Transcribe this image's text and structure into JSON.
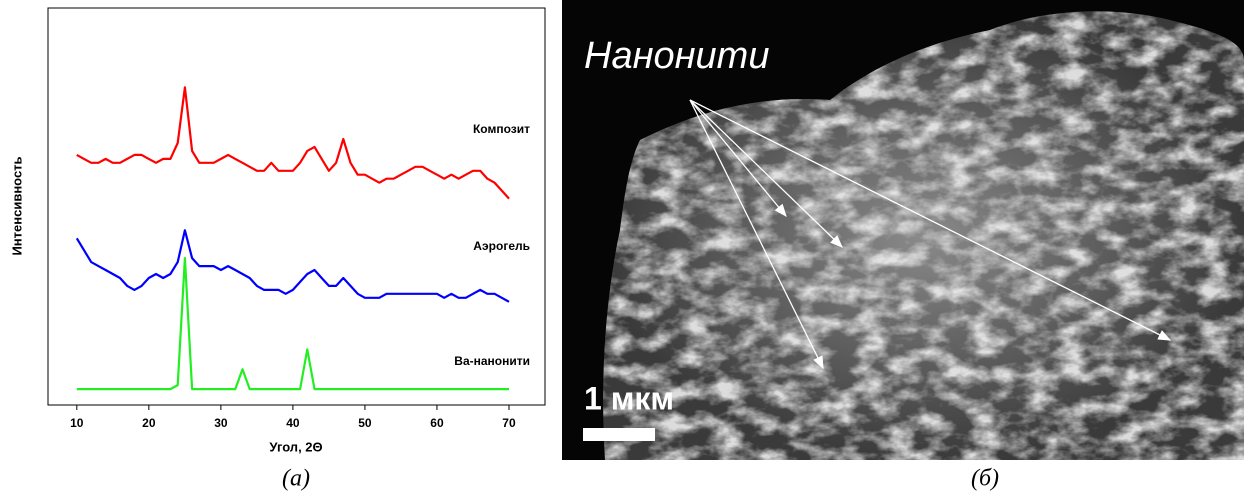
{
  "chart_data": {
    "type": "line",
    "x_label": "Угол, 2Θ",
    "y_label": "Интенсивность",
    "caption": "(a)",
    "xlim": [
      6,
      75
    ],
    "xticks": [
      10,
      20,
      30,
      40,
      50,
      60,
      70
    ],
    "ylim": [
      0,
      100
    ],
    "x": [
      10,
      11,
      12,
      13,
      14,
      15,
      16,
      17,
      18,
      19,
      20,
      21,
      22,
      23,
      24,
      25,
      26,
      27,
      28,
      29,
      30,
      31,
      32,
      33,
      34,
      35,
      36,
      37,
      38,
      39,
      40,
      41,
      42,
      43,
      44,
      45,
      46,
      47,
      48,
      49,
      50,
      51,
      52,
      53,
      54,
      55,
      56,
      57,
      58,
      59,
      60,
      61,
      62,
      63,
      64,
      65,
      66,
      67,
      68,
      69,
      70
    ],
    "series": [
      {
        "name": "Композит",
        "color": "#ff0000",
        "values": [
          63,
          62,
          61,
          61,
          62,
          61,
          61,
          62,
          63,
          63,
          62,
          61,
          62,
          62,
          66,
          80,
          64,
          61,
          61,
          61,
          62,
          63,
          62,
          61,
          60,
          59,
          59,
          61,
          59,
          59,
          59,
          61,
          64,
          65,
          62,
          59,
          61,
          67,
          61,
          58,
          58,
          57,
          56,
          57,
          57,
          58,
          59,
          60,
          60,
          59,
          58,
          57,
          58,
          57,
          58,
          59,
          59,
          57,
          56,
          54,
          52
        ]
      },
      {
        "name": "Аэрогель",
        "color": "#0000ff",
        "values": [
          42,
          39,
          36,
          35,
          34,
          33,
          32,
          30,
          29,
          30,
          32,
          33,
          32,
          33,
          36,
          44,
          37,
          35,
          35,
          35,
          34,
          35,
          34,
          33,
          32,
          30,
          29,
          29,
          29,
          28,
          29,
          31,
          33,
          34,
          32,
          30,
          30,
          32,
          30,
          28,
          27,
          27,
          27,
          28,
          28,
          28,
          28,
          28,
          28,
          28,
          28,
          27,
          28,
          27,
          27,
          28,
          29,
          28,
          28,
          27,
          26
        ]
      },
      {
        "name": "Ва-нанонити",
        "color": "#22ee22",
        "values": [
          4,
          4,
          4,
          4,
          4,
          4,
          4,
          4,
          4,
          4,
          4,
          4,
          4,
          4,
          5,
          37,
          4,
          4,
          4,
          4,
          4,
          4,
          4,
          9,
          4,
          4,
          4,
          4,
          4,
          4,
          4,
          4,
          14,
          4,
          4,
          4,
          4,
          4,
          4,
          4,
          4,
          4,
          4,
          4,
          4,
          4,
          4,
          4,
          4,
          4,
          4,
          4,
          4,
          4,
          4,
          4,
          4,
          4,
          4,
          4,
          4
        ]
      }
    ]
  },
  "image": {
    "label": "Нанонити",
    "scale_bar": "1 мкм",
    "caption": "(б)"
  }
}
